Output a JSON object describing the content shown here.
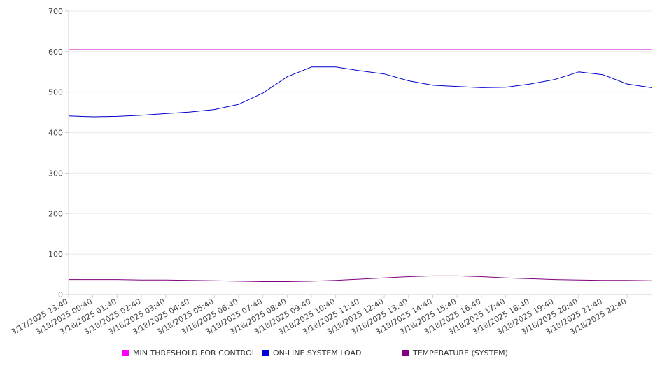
{
  "chart_data": {
    "type": "line",
    "ylim": [
      0,
      700
    ],
    "y_ticks": [
      0,
      100,
      200,
      300,
      400,
      500,
      600,
      700
    ],
    "x_tick_labels": [
      "3/17/2025 23:40",
      "3/18/2025 00:40",
      "3/18/2025 01:40",
      "3/18/2025 02:40",
      "3/18/2025 03:40",
      "3/18/2025 04:40",
      "3/18/2025 05:40",
      "3/18/2025 06:40",
      "3/18/2025 07:40",
      "3/18/2025 08:40",
      "3/18/2025 09:40",
      "3/18/2025 10:40",
      "3/18/2025 11:40",
      "3/18/2025 12:40",
      "3/18/2025 13:40",
      "3/18/2025 14:40",
      "3/18/2025 15:40",
      "3/18/2025 16:40",
      "3/18/2025 17:40",
      "3/18/2025 18:40",
      "3/18/2025 19:40",
      "3/18/2025 20:40",
      "3/18/2025 21:40",
      "3/18/2025 22:40"
    ],
    "grid": true,
    "legend_position": "bottom",
    "series": [
      {
        "name": "MIN THRESHOLD FOR CONTROL",
        "color": "#cc00cc",
        "values": [
          605,
          605,
          605,
          605,
          605,
          605,
          605,
          605,
          605,
          605,
          605,
          605,
          605,
          605,
          605,
          605,
          605,
          605,
          605,
          605,
          605,
          605,
          605,
          605,
          605
        ]
      },
      {
        "name": "ON-LINE SYSTEM LOAD",
        "color": "#0000cc",
        "values": [
          441,
          439,
          440,
          443,
          447,
          451,
          457,
          470,
          498,
          538,
          562,
          562,
          553,
          545,
          528,
          517,
          514,
          511,
          512,
          520,
          531,
          550,
          543,
          520,
          511
        ]
      },
      {
        "name": "TEMPERATURE (SYSTEM)",
        "color": "#800080",
        "values": [
          37,
          37,
          37,
          36,
          36,
          35,
          34,
          33,
          32,
          32,
          33,
          35,
          38,
          41,
          44,
          46,
          46,
          44,
          41,
          39,
          37,
          36,
          35,
          35,
          34
        ]
      }
    ]
  },
  "legend": {
    "items": [
      {
        "label": "MIN THRESHOLD FOR CONTROL",
        "color": "#ff00ff"
      },
      {
        "label": "ON-LINE SYSTEM LOAD",
        "color": "#0000dd"
      },
      {
        "label": "TEMPERATURE (SYSTEM)",
        "color": "#800080"
      }
    ]
  }
}
